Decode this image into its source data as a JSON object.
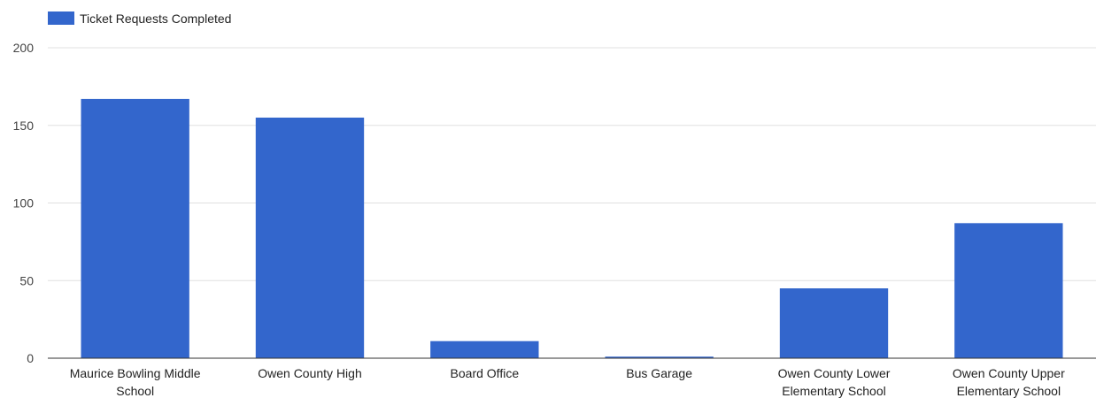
{
  "chart_data": {
    "type": "bar",
    "categories": [
      "Maurice Bowling Middle School",
      "Owen County High",
      "Board Office",
      "Bus Garage",
      "Owen County Lower Elementary School",
      "Owen County Upper Elementary School"
    ],
    "series": [
      {
        "name": "Ticket Requests Completed",
        "values": [
          167,
          155,
          11,
          1,
          45,
          87
        ]
      }
    ],
    "ylim": [
      0,
      200
    ],
    "yticks": [
      0,
      50,
      100,
      150,
      200
    ],
    "grid": true,
    "legend_position": "top-left",
    "colors": {
      "bar": "#3366cc"
    }
  }
}
